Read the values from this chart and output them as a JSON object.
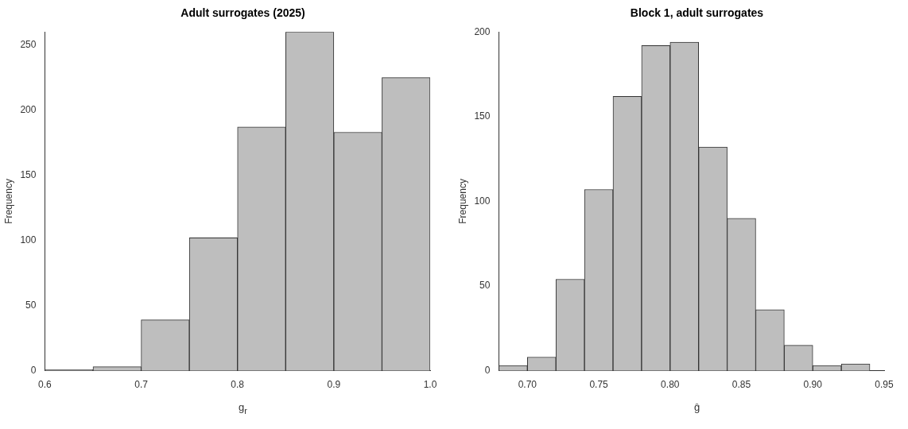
{
  "chart_data": [
    {
      "type": "histogram",
      "title": "Adult surrogates (2025)",
      "xlabel": "g$_{r}$",
      "ylabel": "Frequency",
      "bins": [
        0.6,
        0.65,
        0.7,
        0.75,
        0.8,
        0.85,
        0.9,
        0.95,
        1.0
      ],
      "values": [
        1,
        3,
        39,
        102,
        187,
        260,
        183,
        225
      ],
      "color": "#bebebe",
      "xlim": [
        0.6,
        1.0
      ],
      "xticks": [
        {
          "value": 0.6,
          "label": "0.6"
        },
        {
          "value": 0.7,
          "label": "0.7"
        },
        {
          "value": 0.8,
          "label": "0.8"
        },
        {
          "value": 0.9,
          "label": "0.9"
        },
        {
          "value": 1.0,
          "label": "1.0"
        }
      ],
      "ylim": [
        0,
        260
      ],
      "yticks": [
        0,
        50,
        100,
        150,
        200,
        250
      ],
      "grid": false,
      "legend": false
    },
    {
      "type": "histogram",
      "title": "Block 1, adult surrogates",
      "xlabel": "ĝ",
      "ylabel": "Frequency",
      "bins": [
        0.68,
        0.7,
        0.72,
        0.74,
        0.76,
        0.78,
        0.8,
        0.82,
        0.84,
        0.86,
        0.88,
        0.9,
        0.92,
        0.94
      ],
      "values": [
        3,
        8,
        54,
        107,
        162,
        192,
        194,
        132,
        90,
        36,
        15,
        3,
        4
      ],
      "color": "#bebebe",
      "xlim": [
        0.68,
        0.95
      ],
      "xticks": [
        {
          "value": 0.7,
          "label": "0.70"
        },
        {
          "value": 0.75,
          "label": "0.75"
        },
        {
          "value": 0.8,
          "label": "0.80"
        },
        {
          "value": 0.85,
          "label": "0.85"
        },
        {
          "value": 0.9,
          "label": "0.90"
        },
        {
          "value": 0.95,
          "label": "0.95"
        }
      ],
      "ylim": [
        0,
        200
      ],
      "yticks": [
        0,
        50,
        100,
        150,
        200
      ],
      "grid": false,
      "legend": false
    }
  ]
}
